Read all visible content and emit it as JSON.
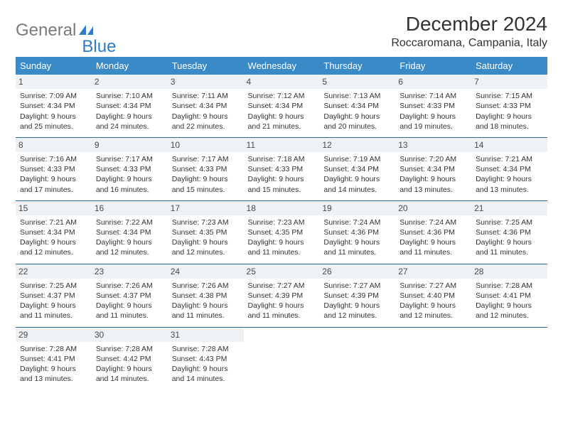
{
  "logo": {
    "word1": "General",
    "word2": "Blue"
  },
  "title": "December 2024",
  "location": "Roccaromana, Campania, Italy",
  "colors": {
    "header_bg": "#3a8ac8",
    "header_text": "#ffffff",
    "daynum_bg": "#eef2f5",
    "row_border": "#2d6ca3",
    "logo_gray": "#7a7a7a",
    "logo_blue": "#2f7dc4"
  },
  "fonts": {
    "title_size": 28,
    "location_size": 16,
    "dayheader_size": 13,
    "cell_size": 10.5
  },
  "dayHeaders": [
    "Sunday",
    "Monday",
    "Tuesday",
    "Wednesday",
    "Thursday",
    "Friday",
    "Saturday"
  ],
  "weeks": [
    [
      {
        "n": "1",
        "sr": "Sunrise: 7:09 AM",
        "ss": "Sunset: 4:34 PM",
        "d1": "Daylight: 9 hours",
        "d2": "and 25 minutes."
      },
      {
        "n": "2",
        "sr": "Sunrise: 7:10 AM",
        "ss": "Sunset: 4:34 PM",
        "d1": "Daylight: 9 hours",
        "d2": "and 24 minutes."
      },
      {
        "n": "3",
        "sr": "Sunrise: 7:11 AM",
        "ss": "Sunset: 4:34 PM",
        "d1": "Daylight: 9 hours",
        "d2": "and 22 minutes."
      },
      {
        "n": "4",
        "sr": "Sunrise: 7:12 AM",
        "ss": "Sunset: 4:34 PM",
        "d1": "Daylight: 9 hours",
        "d2": "and 21 minutes."
      },
      {
        "n": "5",
        "sr": "Sunrise: 7:13 AM",
        "ss": "Sunset: 4:34 PM",
        "d1": "Daylight: 9 hours",
        "d2": "and 20 minutes."
      },
      {
        "n": "6",
        "sr": "Sunrise: 7:14 AM",
        "ss": "Sunset: 4:33 PM",
        "d1": "Daylight: 9 hours",
        "d2": "and 19 minutes."
      },
      {
        "n": "7",
        "sr": "Sunrise: 7:15 AM",
        "ss": "Sunset: 4:33 PM",
        "d1": "Daylight: 9 hours",
        "d2": "and 18 minutes."
      }
    ],
    [
      {
        "n": "8",
        "sr": "Sunrise: 7:16 AM",
        "ss": "Sunset: 4:33 PM",
        "d1": "Daylight: 9 hours",
        "d2": "and 17 minutes."
      },
      {
        "n": "9",
        "sr": "Sunrise: 7:17 AM",
        "ss": "Sunset: 4:33 PM",
        "d1": "Daylight: 9 hours",
        "d2": "and 16 minutes."
      },
      {
        "n": "10",
        "sr": "Sunrise: 7:17 AM",
        "ss": "Sunset: 4:33 PM",
        "d1": "Daylight: 9 hours",
        "d2": "and 15 minutes."
      },
      {
        "n": "11",
        "sr": "Sunrise: 7:18 AM",
        "ss": "Sunset: 4:33 PM",
        "d1": "Daylight: 9 hours",
        "d2": "and 15 minutes."
      },
      {
        "n": "12",
        "sr": "Sunrise: 7:19 AM",
        "ss": "Sunset: 4:34 PM",
        "d1": "Daylight: 9 hours",
        "d2": "and 14 minutes."
      },
      {
        "n": "13",
        "sr": "Sunrise: 7:20 AM",
        "ss": "Sunset: 4:34 PM",
        "d1": "Daylight: 9 hours",
        "d2": "and 13 minutes."
      },
      {
        "n": "14",
        "sr": "Sunrise: 7:21 AM",
        "ss": "Sunset: 4:34 PM",
        "d1": "Daylight: 9 hours",
        "d2": "and 13 minutes."
      }
    ],
    [
      {
        "n": "15",
        "sr": "Sunrise: 7:21 AM",
        "ss": "Sunset: 4:34 PM",
        "d1": "Daylight: 9 hours",
        "d2": "and 12 minutes."
      },
      {
        "n": "16",
        "sr": "Sunrise: 7:22 AM",
        "ss": "Sunset: 4:34 PM",
        "d1": "Daylight: 9 hours",
        "d2": "and 12 minutes."
      },
      {
        "n": "17",
        "sr": "Sunrise: 7:23 AM",
        "ss": "Sunset: 4:35 PM",
        "d1": "Daylight: 9 hours",
        "d2": "and 12 minutes."
      },
      {
        "n": "18",
        "sr": "Sunrise: 7:23 AM",
        "ss": "Sunset: 4:35 PM",
        "d1": "Daylight: 9 hours",
        "d2": "and 11 minutes."
      },
      {
        "n": "19",
        "sr": "Sunrise: 7:24 AM",
        "ss": "Sunset: 4:36 PM",
        "d1": "Daylight: 9 hours",
        "d2": "and 11 minutes."
      },
      {
        "n": "20",
        "sr": "Sunrise: 7:24 AM",
        "ss": "Sunset: 4:36 PM",
        "d1": "Daylight: 9 hours",
        "d2": "and 11 minutes."
      },
      {
        "n": "21",
        "sr": "Sunrise: 7:25 AM",
        "ss": "Sunset: 4:36 PM",
        "d1": "Daylight: 9 hours",
        "d2": "and 11 minutes."
      }
    ],
    [
      {
        "n": "22",
        "sr": "Sunrise: 7:25 AM",
        "ss": "Sunset: 4:37 PM",
        "d1": "Daylight: 9 hours",
        "d2": "and 11 minutes."
      },
      {
        "n": "23",
        "sr": "Sunrise: 7:26 AM",
        "ss": "Sunset: 4:37 PM",
        "d1": "Daylight: 9 hours",
        "d2": "and 11 minutes."
      },
      {
        "n": "24",
        "sr": "Sunrise: 7:26 AM",
        "ss": "Sunset: 4:38 PM",
        "d1": "Daylight: 9 hours",
        "d2": "and 11 minutes."
      },
      {
        "n": "25",
        "sr": "Sunrise: 7:27 AM",
        "ss": "Sunset: 4:39 PM",
        "d1": "Daylight: 9 hours",
        "d2": "and 11 minutes."
      },
      {
        "n": "26",
        "sr": "Sunrise: 7:27 AM",
        "ss": "Sunset: 4:39 PM",
        "d1": "Daylight: 9 hours",
        "d2": "and 12 minutes."
      },
      {
        "n": "27",
        "sr": "Sunrise: 7:27 AM",
        "ss": "Sunset: 4:40 PM",
        "d1": "Daylight: 9 hours",
        "d2": "and 12 minutes."
      },
      {
        "n": "28",
        "sr": "Sunrise: 7:28 AM",
        "ss": "Sunset: 4:41 PM",
        "d1": "Daylight: 9 hours",
        "d2": "and 12 minutes."
      }
    ],
    [
      {
        "n": "29",
        "sr": "Sunrise: 7:28 AM",
        "ss": "Sunset: 4:41 PM",
        "d1": "Daylight: 9 hours",
        "d2": "and 13 minutes."
      },
      {
        "n": "30",
        "sr": "Sunrise: 7:28 AM",
        "ss": "Sunset: 4:42 PM",
        "d1": "Daylight: 9 hours",
        "d2": "and 14 minutes."
      },
      {
        "n": "31",
        "sr": "Sunrise: 7:28 AM",
        "ss": "Sunset: 4:43 PM",
        "d1": "Daylight: 9 hours",
        "d2": "and 14 minutes."
      },
      null,
      null,
      null,
      null
    ]
  ]
}
